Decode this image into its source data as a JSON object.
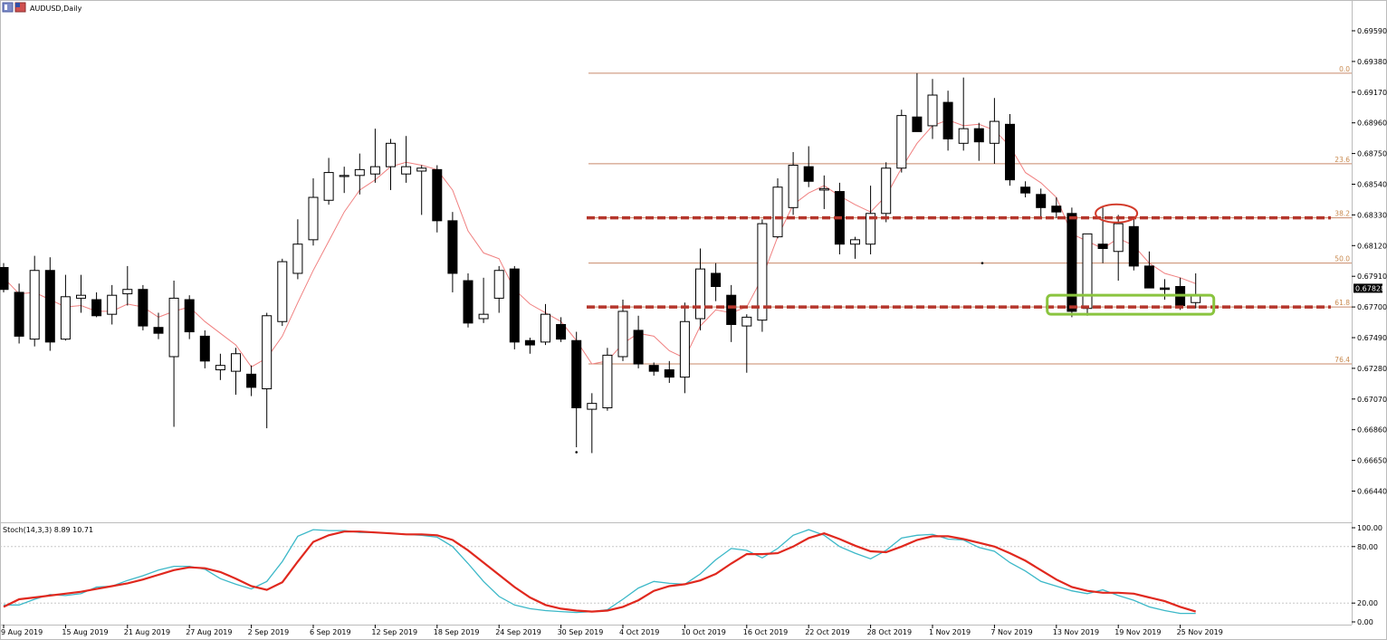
{
  "window": {
    "title": "AUDUSD,Daily"
  },
  "indicator": {
    "label": "Stoch(14,3,3) 8.89 10.71"
  },
  "price_badge": "0.67828",
  "colors": {
    "up_candle_fill": "#ffffff",
    "down_candle_fill": "#000000",
    "ma_line": "#f08080",
    "fib_line": "#c8896a",
    "dashed_level": "#b5362c",
    "highlight_circle": "#d23a2a",
    "highlight_box": "#8ac43f",
    "stoch_main": "#3cb8c8",
    "stoch_signal": "#e0281e"
  },
  "chart_data": [
    {
      "type": "candlestick",
      "title": "AUDUSD,Daily",
      "ylim": [
        0.6634,
        0.6975
      ],
      "y_ticks": [
        "0.69590",
        "0.69380",
        "0.69170",
        "0.68960",
        "0.68750",
        "0.68540",
        "0.68330",
        "0.68120",
        "0.67910",
        "0.67700",
        "0.67490",
        "0.67280",
        "0.67070",
        "0.66860",
        "0.66650",
        "0.66440"
      ],
      "x_ticks": [
        "9 Aug 2019",
        "15 Aug 2019",
        "21 Aug 2019",
        "27 Aug 2019",
        "2 Sep 2019",
        "6 Sep 2019",
        "12 Sep 2019",
        "18 Sep 2019",
        "24 Sep 2019",
        "30 Sep 2019",
        "4 Oct 2019",
        "10 Oct 2019",
        "16 Oct 2019",
        "22 Oct 2019",
        "28 Oct 2019",
        "1 Nov 2019",
        "7 Nov 2019",
        "13 Nov 2019",
        "19 Nov 2019",
        "25 Nov 2019"
      ],
      "x_tick_index": [
        0,
        4,
        8,
        12,
        16,
        20,
        24,
        28,
        32,
        36,
        40,
        44,
        48,
        52,
        56,
        60,
        64,
        68,
        72,
        76
      ],
      "candles": [
        {
          "o": 0.6797,
          "h": 0.68,
          "l": 0.678,
          "c": 0.6782
        },
        {
          "o": 0.678,
          "h": 0.6786,
          "l": 0.6745,
          "c": 0.675
        },
        {
          "o": 0.6748,
          "h": 0.6805,
          "l": 0.6743,
          "c": 0.6795
        },
        {
          "o": 0.6795,
          "h": 0.6804,
          "l": 0.674,
          "c": 0.6746
        },
        {
          "o": 0.6748,
          "h": 0.6792,
          "l": 0.6747,
          "c": 0.6777
        },
        {
          "o": 0.6776,
          "h": 0.6792,
          "l": 0.6766,
          "c": 0.6778
        },
        {
          "o": 0.6775,
          "h": 0.678,
          "l": 0.6763,
          "c": 0.6764
        },
        {
          "o": 0.6765,
          "h": 0.6785,
          "l": 0.6758,
          "c": 0.6778
        },
        {
          "o": 0.6779,
          "h": 0.6798,
          "l": 0.6771,
          "c": 0.6782
        },
        {
          "o": 0.6782,
          "h": 0.6785,
          "l": 0.6754,
          "c": 0.6757
        },
        {
          "o": 0.6756,
          "h": 0.6766,
          "l": 0.6748,
          "c": 0.6752
        },
        {
          "o": 0.6736,
          "h": 0.6788,
          "l": 0.6688,
          "c": 0.6776
        },
        {
          "o": 0.6775,
          "h": 0.6778,
          "l": 0.6748,
          "c": 0.6753
        },
        {
          "o": 0.675,
          "h": 0.6754,
          "l": 0.6728,
          "c": 0.6733
        },
        {
          "o": 0.6727,
          "h": 0.6738,
          "l": 0.672,
          "c": 0.673
        },
        {
          "o": 0.6726,
          "h": 0.6742,
          "l": 0.671,
          "c": 0.6738
        },
        {
          "o": 0.6724,
          "h": 0.673,
          "l": 0.6709,
          "c": 0.6715
        },
        {
          "o": 0.6714,
          "h": 0.6766,
          "l": 0.6687,
          "c": 0.6764
        },
        {
          "o": 0.676,
          "h": 0.6803,
          "l": 0.6757,
          "c": 0.6801
        },
        {
          "o": 0.6793,
          "h": 0.683,
          "l": 0.6789,
          "c": 0.6813
        },
        {
          "o": 0.6816,
          "h": 0.6858,
          "l": 0.6812,
          "c": 0.6845
        },
        {
          "o": 0.6843,
          "h": 0.6872,
          "l": 0.684,
          "c": 0.6862
        },
        {
          "o": 0.686,
          "h": 0.6866,
          "l": 0.6848,
          "c": 0.686
        },
        {
          "o": 0.686,
          "h": 0.6875,
          "l": 0.6847,
          "c": 0.6864
        },
        {
          "o": 0.6861,
          "h": 0.6892,
          "l": 0.6855,
          "c": 0.6866
        },
        {
          "o": 0.6866,
          "h": 0.6885,
          "l": 0.685,
          "c": 0.6882
        },
        {
          "o": 0.6861,
          "h": 0.6887,
          "l": 0.6855,
          "c": 0.6866
        },
        {
          "o": 0.6863,
          "h": 0.6867,
          "l": 0.6833,
          "c": 0.6865
        },
        {
          "o": 0.6864,
          "h": 0.6867,
          "l": 0.6821,
          "c": 0.6829
        },
        {
          "o": 0.6829,
          "h": 0.6835,
          "l": 0.678,
          "c": 0.6793
        },
        {
          "o": 0.6788,
          "h": 0.6793,
          "l": 0.6756,
          "c": 0.6759
        },
        {
          "o": 0.6762,
          "h": 0.679,
          "l": 0.6759,
          "c": 0.6765
        },
        {
          "o": 0.6776,
          "h": 0.6798,
          "l": 0.6766,
          "c": 0.6795
        },
        {
          "o": 0.6796,
          "h": 0.6798,
          "l": 0.6741,
          "c": 0.6746
        },
        {
          "o": 0.6747,
          "h": 0.6749,
          "l": 0.6738,
          "c": 0.6744
        },
        {
          "o": 0.6746,
          "h": 0.6772,
          "l": 0.6744,
          "c": 0.6765
        },
        {
          "o": 0.6758,
          "h": 0.6763,
          "l": 0.6746,
          "c": 0.6748
        },
        {
          "o": 0.6747,
          "h": 0.6753,
          "l": 0.6674,
          "c": 0.6701
        },
        {
          "o": 0.67,
          "h": 0.6711,
          "l": 0.667,
          "c": 0.6704
        },
        {
          "o": 0.6701,
          "h": 0.6742,
          "l": 0.6699,
          "c": 0.6737
        },
        {
          "o": 0.6736,
          "h": 0.6775,
          "l": 0.6733,
          "c": 0.6767
        },
        {
          "o": 0.6754,
          "h": 0.6764,
          "l": 0.6728,
          "c": 0.6731
        },
        {
          "o": 0.673,
          "h": 0.6732,
          "l": 0.6723,
          "c": 0.6726
        },
        {
          "o": 0.6727,
          "h": 0.6733,
          "l": 0.6718,
          "c": 0.6722
        },
        {
          "o": 0.6722,
          "h": 0.6773,
          "l": 0.6711,
          "c": 0.676
        },
        {
          "o": 0.6762,
          "h": 0.681,
          "l": 0.6754,
          "c": 0.6796
        },
        {
          "o": 0.6793,
          "h": 0.68,
          "l": 0.6774,
          "c": 0.6784
        },
        {
          "o": 0.6778,
          "h": 0.6785,
          "l": 0.6746,
          "c": 0.6758
        },
        {
          "o": 0.6757,
          "h": 0.6765,
          "l": 0.6725,
          "c": 0.6763
        },
        {
          "o": 0.6761,
          "h": 0.683,
          "l": 0.6753,
          "c": 0.6827
        },
        {
          "o": 0.6818,
          "h": 0.6858,
          "l": 0.6817,
          "c": 0.6852
        },
        {
          "o": 0.6838,
          "h": 0.6876,
          "l": 0.6833,
          "c": 0.6867
        },
        {
          "o": 0.6866,
          "h": 0.688,
          "l": 0.6852,
          "c": 0.6856
        },
        {
          "o": 0.685,
          "h": 0.686,
          "l": 0.6837,
          "c": 0.6851
        },
        {
          "o": 0.6849,
          "h": 0.6855,
          "l": 0.6806,
          "c": 0.6813
        },
        {
          "o": 0.6813,
          "h": 0.6818,
          "l": 0.6803,
          "c": 0.6816
        },
        {
          "o": 0.6813,
          "h": 0.6853,
          "l": 0.6806,
          "c": 0.6834
        },
        {
          "o": 0.6834,
          "h": 0.6869,
          "l": 0.6828,
          "c": 0.6865
        },
        {
          "o": 0.6865,
          "h": 0.6905,
          "l": 0.6862,
          "c": 0.6901
        },
        {
          "o": 0.69,
          "h": 0.693,
          "l": 0.689,
          "c": 0.689
        },
        {
          "o": 0.6894,
          "h": 0.6926,
          "l": 0.6885,
          "c": 0.6915
        },
        {
          "o": 0.691,
          "h": 0.6918,
          "l": 0.6877,
          "c": 0.6885
        },
        {
          "o": 0.6882,
          "h": 0.6927,
          "l": 0.6877,
          "c": 0.6892
        },
        {
          "o": 0.6892,
          "h": 0.6896,
          "l": 0.687,
          "c": 0.6883
        },
        {
          "o": 0.6882,
          "h": 0.6913,
          "l": 0.6868,
          "c": 0.6897
        },
        {
          "o": 0.6895,
          "h": 0.6902,
          "l": 0.6853,
          "c": 0.6857
        },
        {
          "o": 0.6852,
          "h": 0.6856,
          "l": 0.6845,
          "c": 0.6848
        },
        {
          "o": 0.6847,
          "h": 0.6851,
          "l": 0.6832,
          "c": 0.6838
        },
        {
          "o": 0.6839,
          "h": 0.6845,
          "l": 0.6831,
          "c": 0.6835
        },
        {
          "o": 0.6834,
          "h": 0.6838,
          "l": 0.6763,
          "c": 0.6767
        },
        {
          "o": 0.6769,
          "h": 0.682,
          "l": 0.6764,
          "c": 0.682
        },
        {
          "o": 0.6813,
          "h": 0.6838,
          "l": 0.68,
          "c": 0.681
        },
        {
          "o": 0.6808,
          "h": 0.6833,
          "l": 0.6788,
          "c": 0.6827
        },
        {
          "o": 0.6825,
          "h": 0.683,
          "l": 0.6795,
          "c": 0.6798
        },
        {
          "o": 0.6798,
          "h": 0.6808,
          "l": 0.6783,
          "c": 0.6783
        },
        {
          "o": 0.6783,
          "h": 0.6789,
          "l": 0.6775,
          "c": 0.6782
        },
        {
          "o": 0.6784,
          "h": 0.679,
          "l": 0.6768,
          "c": 0.6771
        },
        {
          "o": 0.6773,
          "h": 0.6793,
          "l": 0.6769,
          "c": 0.6778
        }
      ],
      "ma": [
        0.679,
        0.6779,
        0.678,
        0.6775,
        0.677,
        0.6771,
        0.6767,
        0.6767,
        0.6772,
        0.677,
        0.6763,
        0.6767,
        0.677,
        0.676,
        0.6752,
        0.6744,
        0.6729,
        0.6735,
        0.675,
        0.6773,
        0.6795,
        0.6815,
        0.6835,
        0.685,
        0.6857,
        0.6866,
        0.6869,
        0.6867,
        0.6864,
        0.685,
        0.6822,
        0.6807,
        0.6803,
        0.6782,
        0.6772,
        0.6766,
        0.676,
        0.6747,
        0.6731,
        0.6733,
        0.6745,
        0.6752,
        0.675,
        0.674,
        0.6735,
        0.6757,
        0.6768,
        0.6766,
        0.677,
        0.679,
        0.6818,
        0.684,
        0.6848,
        0.6853,
        0.6846,
        0.684,
        0.6835,
        0.6846,
        0.6865,
        0.6882,
        0.6894,
        0.6898,
        0.6894,
        0.6895,
        0.6891,
        0.688,
        0.6862,
        0.6855,
        0.6845,
        0.682,
        0.6815,
        0.681,
        0.6817,
        0.6812,
        0.68,
        0.6793,
        0.679,
        0.6786
      ],
      "fibonacci": {
        "levels": [
          {
            "label": "0.0",
            "price": 0.693
          },
          {
            "label": "23.6",
            "price": 0.6868
          },
          {
            "label": "38.2",
            "price": 0.6831
          },
          {
            "label": "50.0",
            "price": 0.68
          },
          {
            "label": "61.8",
            "price": 0.677
          },
          {
            "label": "76.4",
            "price": 0.6731
          }
        ]
      },
      "dashed_levels": [
        0.6831,
        0.677
      ],
      "current_price": 0.67828
    },
    {
      "type": "line",
      "title": "Stoch(14,3,3) 8.89 10.71",
      "ylim": [
        0,
        100
      ],
      "y_ticks": [
        "100.00",
        "80.00",
        "20.00",
        "0.00"
      ],
      "levels": [
        80,
        20
      ],
      "series": [
        {
          "name": "main",
          "values": [
            18,
            18,
            24,
            29,
            28,
            30,
            37,
            38,
            44,
            49,
            55,
            59,
            59,
            56,
            46,
            40,
            35,
            43,
            64,
            91,
            98,
            97,
            97,
            95,
            95,
            94,
            93,
            92,
            90,
            80,
            62,
            43,
            27,
            18,
            14,
            12,
            11,
            10,
            11,
            13,
            24,
            36,
            43,
            41,
            40,
            51,
            66,
            78,
            76,
            68,
            78,
            92,
            98,
            92,
            80,
            73,
            67,
            76,
            89,
            92,
            93,
            88,
            87,
            79,
            75,
            63,
            54,
            43,
            38,
            33,
            30,
            34,
            28,
            23,
            16,
            12,
            9,
            9
          ],
          "color": "#3cb8c8"
        },
        {
          "name": "signal",
          "values": [
            16,
            24,
            26,
            28,
            30,
            32,
            35,
            38,
            41,
            45,
            50,
            55,
            58,
            57,
            53,
            46,
            38,
            34,
            42,
            64,
            85,
            92,
            96,
            96,
            95,
            94,
            93,
            93,
            92,
            87,
            76,
            63,
            50,
            37,
            26,
            18,
            14,
            12,
            11,
            12,
            16,
            23,
            33,
            38,
            40,
            44,
            51,
            62,
            72,
            72,
            73,
            80,
            89,
            94,
            88,
            81,
            75,
            74,
            80,
            87,
            91,
            91,
            88,
            84,
            80,
            73,
            65,
            55,
            45,
            37,
            33,
            31,
            31,
            30,
            26,
            22,
            16,
            11
          ]
        }
      ]
    }
  ]
}
